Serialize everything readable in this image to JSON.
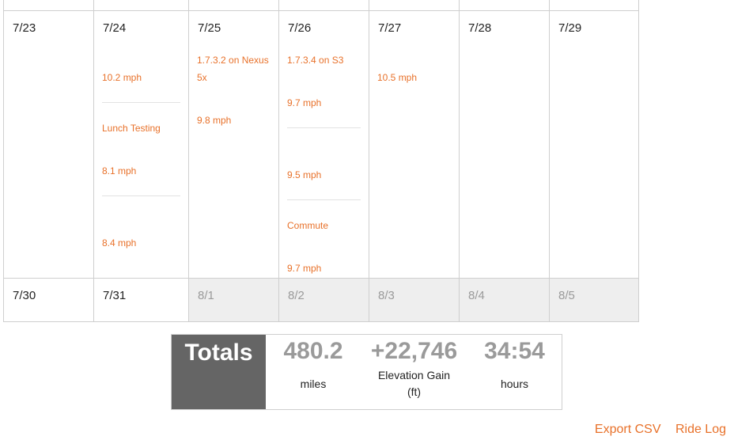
{
  "calendar": {
    "week1": [
      {
        "date": "7/23",
        "rides": []
      },
      {
        "date": "7/24",
        "rides": [
          {
            "label": "",
            "speed": "10.2 mph"
          },
          {
            "label": "Lunch Testing",
            "speed": "8.1 mph"
          },
          {
            "label": "",
            "speed": "8.4 mph"
          }
        ]
      },
      {
        "date": "7/25",
        "rides": [
          {
            "label": "1.7.3.2 on Nexus 5x",
            "speed": "9.8 mph"
          }
        ]
      },
      {
        "date": "7/26",
        "rides": [
          {
            "label": "1.7.3.4 on S3",
            "speed": "9.7 mph"
          },
          {
            "label": "",
            "speed": "9.5 mph"
          },
          {
            "label": "Commute",
            "speed": "9.7 mph"
          }
        ]
      },
      {
        "date": "7/27",
        "rides": [
          {
            "label": "",
            "speed": "10.5 mph"
          }
        ]
      },
      {
        "date": "7/28",
        "rides": []
      },
      {
        "date": "7/29",
        "rides": []
      }
    ],
    "week2": [
      {
        "date": "7/30"
      },
      {
        "date": "7/31"
      },
      {
        "date": "8/1"
      },
      {
        "date": "8/2"
      },
      {
        "date": "8/3"
      },
      {
        "date": "8/4"
      },
      {
        "date": "8/5"
      }
    ]
  },
  "totals": {
    "label": "Totals",
    "miles": {
      "value": "480.2",
      "unit": "miles"
    },
    "elevation": {
      "value": "+22,746",
      "unit_line1": "Elevation Gain",
      "unit_line2": "(ft)"
    },
    "hours": {
      "value": "34:54",
      "unit": "hours"
    }
  },
  "footer": {
    "export_csv": "Export CSV",
    "ride_log": "Ride Log"
  },
  "colors": {
    "accent": "#e8712a",
    "totals_bg": "#656565",
    "muted_text": "#9a9a9a",
    "grid_line": "#cfcfcf",
    "other_month_bg": "#eeeeee"
  }
}
